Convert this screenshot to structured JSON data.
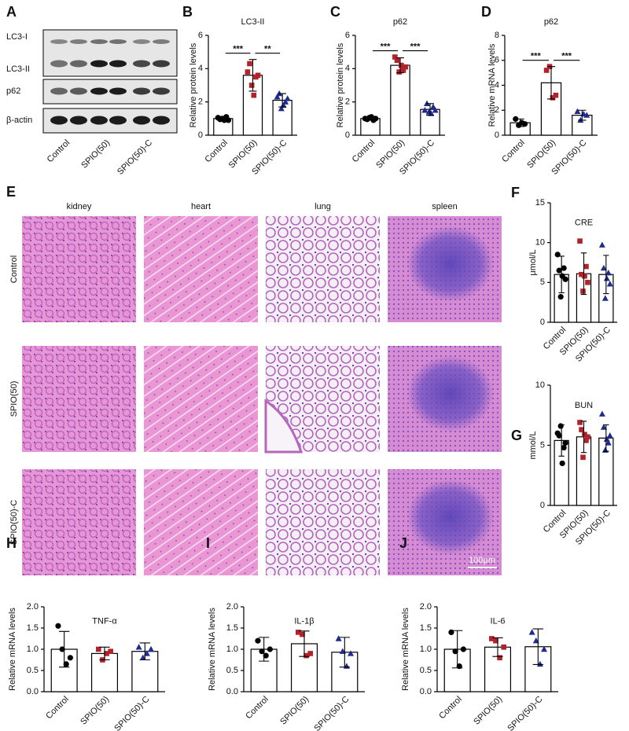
{
  "blot": {
    "panel": "A",
    "bands": [
      "LC3-I",
      "LC3-II",
      "p62",
      "β-actin"
    ],
    "lanes": [
      "Control",
      "SPIO(50)",
      "SPIO(50)-C"
    ]
  },
  "histology": {
    "panel": "E",
    "columns": [
      "kidney",
      "heart",
      "lung",
      "spleen"
    ],
    "rows": [
      "Control",
      "SPIO(50)",
      "SPIO(50)-C"
    ],
    "scale_bar": "100μm"
  },
  "chart_data": [
    {
      "type": "bar",
      "panel": "B",
      "title": "LC3-II",
      "ylabel": "Relative protein levels",
      "categories": [
        "Control",
        "SPIO(50)",
        "SPIO(50)-C"
      ],
      "values": [
        1.0,
        3.6,
        2.1
      ],
      "errors": [
        0.12,
        0.95,
        0.4
      ],
      "points": [
        [
          1.05,
          0.95,
          1.0,
          0.9,
          1.1,
          0.9
        ],
        [
          3.8,
          4.3,
          3.0,
          2.4,
          3.5,
          3.6
        ],
        [
          2.3,
          2.5,
          1.6,
          1.8,
          2.0,
          2.2
        ]
      ],
      "colors": [
        "#000000",
        "#b2222a",
        "#1f2b8f"
      ],
      "markers": [
        "circle",
        "square",
        "triangle"
      ],
      "ylim": [
        0,
        6
      ],
      "yticks": [
        0,
        2,
        4,
        6
      ],
      "annotations": [
        "***",
        "**"
      ]
    },
    {
      "type": "bar",
      "panel": "C",
      "title": "p62",
      "ylabel": "Relative protein levels",
      "categories": [
        "Control",
        "SPIO(50)",
        "SPIO(50)-C"
      ],
      "values": [
        1.0,
        4.2,
        1.55
      ],
      "errors": [
        0.1,
        0.45,
        0.35
      ],
      "points": [
        [
          1.0,
          0.95,
          1.05,
          1.1,
          0.9,
          1.0
        ],
        [
          4.7,
          4.5,
          3.8,
          4.2,
          3.9,
          4.1
        ],
        [
          1.5,
          1.9,
          1.4,
          1.3,
          1.7,
          1.5
        ]
      ],
      "colors": [
        "#000000",
        "#b2222a",
        "#1f2b8f"
      ],
      "markers": [
        "circle",
        "square",
        "triangle"
      ],
      "ylim": [
        0,
        6
      ],
      "yticks": [
        0,
        2,
        4,
        6
      ],
      "annotations": [
        "***",
        "***"
      ]
    },
    {
      "type": "bar",
      "panel": "D",
      "title": "p62",
      "ylabel": "Relative mRNA levels",
      "categories": [
        "Control",
        "SPIO(50)",
        "SPIO(50)-C"
      ],
      "values": [
        1.0,
        4.2,
        1.6
      ],
      "errors": [
        0.3,
        1.3,
        0.4
      ],
      "points": [
        [
          1.3,
          0.8,
          1.0,
          0.9
        ],
        [
          5.2,
          5.5,
          3.0,
          3.2
        ],
        [
          1.9,
          1.2,
          1.7,
          1.6
        ]
      ],
      "colors": [
        "#000000",
        "#b2222a",
        "#1f2b8f"
      ],
      "markers": [
        "circle",
        "square",
        "triangle"
      ],
      "ylim": [
        0,
        8
      ],
      "yticks": [
        0,
        2,
        4,
        6,
        8
      ],
      "annotations": [
        "***",
        "***"
      ]
    },
    {
      "type": "bar",
      "panel": "F",
      "title": "CRE",
      "ylabel": "μmol/L",
      "categories": [
        "Control",
        "SPIO(50)",
        "SPIO(50)-C"
      ],
      "values": [
        6.0,
        6.1,
        6.0
      ],
      "errors": [
        2.3,
        2.6,
        2.4
      ],
      "points": [
        [
          8.5,
          6.5,
          3.2,
          5.8,
          6.8,
          5.4
        ],
        [
          10.2,
          6.0,
          3.9,
          5.8,
          7.0,
          5.0
        ],
        [
          9.7,
          6.8,
          3.0,
          5.5,
          6.2,
          4.8
        ]
      ],
      "colors": [
        "#000000",
        "#b2222a",
        "#1f2b8f"
      ],
      "markers": [
        "circle",
        "square",
        "triangle"
      ],
      "ylim": [
        0,
        15
      ],
      "yticks": [
        0,
        5,
        10,
        15
      ]
    },
    {
      "type": "bar",
      "panel": "G",
      "title": "BUN",
      "ylabel": "mmol/L",
      "categories": [
        "Control",
        "SPIO(50)",
        "SPIO(50)-C"
      ],
      "values": [
        5.4,
        5.7,
        5.6
      ],
      "errors": [
        1.3,
        1.3,
        1.1
      ],
      "points": [
        [
          6.0,
          5.8,
          6.6,
          3.5,
          4.8,
          5.2
        ],
        [
          6.9,
          6.3,
          4.0,
          5.9,
          5.4,
          5.7
        ],
        [
          7.6,
          6.5,
          4.6,
          5.5,
          5.2,
          5.8
        ]
      ],
      "colors": [
        "#000000",
        "#b2222a",
        "#1f2b8f"
      ],
      "markers": [
        "circle",
        "square",
        "triangle"
      ],
      "ylim": [
        0,
        10
      ],
      "yticks": [
        0,
        5,
        10
      ]
    },
    {
      "type": "bar",
      "panel": "H",
      "title": "TNF-α",
      "ylabel": "Relative mRNA levels",
      "categories": [
        "Control",
        "SPIO(50)",
        "SPIO(50)-C"
      ],
      "values": [
        1.0,
        0.9,
        0.95
      ],
      "errors": [
        0.42,
        0.15,
        0.2
      ],
      "points": [
        [
          1.55,
          1.0,
          0.65,
          0.8
        ],
        [
          1.0,
          0.75,
          0.9,
          0.95
        ],
        [
          1.05,
          0.8,
          0.9,
          1.0
        ]
      ],
      "colors": [
        "#000000",
        "#b2222a",
        "#1f2b8f"
      ],
      "markers": [
        "circle",
        "square",
        "triangle"
      ],
      "ylim": [
        0,
        2
      ],
      "yticks": [
        {
          "value": 0,
          "label": "0.0"
        },
        0.5,
        {
          "value": 1,
          "label": "1.0"
        },
        1.5,
        {
          "value": 2,
          "label": "2.0"
        }
      ]
    },
    {
      "type": "bar",
      "panel": "I",
      "title": "IL-1β",
      "ylabel": "Relative mRNA levels",
      "categories": [
        "Control",
        "SPIO(50)",
        "SPIO(50)-C"
      ],
      "values": [
        1.0,
        1.13,
        0.93
      ],
      "errors": [
        0.28,
        0.3,
        0.35
      ],
      "points": [
        [
          1.2,
          0.95,
          0.85,
          1.0
        ],
        [
          1.4,
          1.35,
          0.85,
          0.9
        ],
        [
          1.25,
          0.95,
          0.6,
          0.9
        ]
      ],
      "colors": [
        "#000000",
        "#b2222a",
        "#1f2b8f"
      ],
      "markers": [
        "circle",
        "square",
        "triangle"
      ],
      "ylim": [
        0,
        2
      ],
      "yticks": [
        {
          "value": 0,
          "label": "0.0"
        },
        0.5,
        {
          "value": 1,
          "label": "1.0"
        },
        1.5,
        {
          "value": 2,
          "label": "2.0"
        }
      ]
    },
    {
      "type": "bar",
      "panel": "J",
      "title": "IL-6",
      "ylabel": "Relative mRNA levels",
      "categories": [
        "Control",
        "SPIO(50)",
        "SPIO(50)-C"
      ],
      "values": [
        1.0,
        1.05,
        1.06
      ],
      "errors": [
        0.44,
        0.22,
        0.42
      ],
      "points": [
        [
          1.4,
          0.95,
          0.6,
          1.0
        ],
        [
          1.25,
          1.2,
          0.8,
          1.05
        ],
        [
          1.4,
          1.2,
          0.65,
          1.0
        ]
      ],
      "colors": [
        "#000000",
        "#b2222a",
        "#1f2b8f"
      ],
      "markers": [
        "circle",
        "square",
        "triangle"
      ],
      "ylim": [
        0,
        2
      ],
      "yticks": [
        {
          "value": 0,
          "label": "0.0"
        },
        0.5,
        {
          "value": 1,
          "label": "1.0"
        },
        1.5,
        {
          "value": 2,
          "label": "2.0"
        }
      ]
    }
  ]
}
